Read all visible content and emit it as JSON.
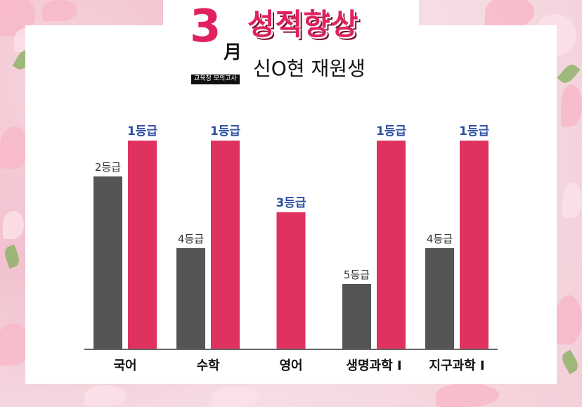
{
  "header": {
    "month_number": "3",
    "month_char": "月",
    "exam_badge": "교육청 모의고사",
    "headline": "성적향상",
    "student": "신O현 재원생"
  },
  "colors": {
    "before": "#555555",
    "after": "#e0325f",
    "after_label": "#2f4fa3",
    "before_label": "#333333",
    "accent": "#e0215d"
  },
  "chart_data": {
    "type": "bar",
    "categories": [
      "국어",
      "수학",
      "영어",
      "생명과학 I",
      "지구과학 I"
    ],
    "series": [
      {
        "values": [
          2,
          4,
          null,
          5,
          4
        ],
        "labels": [
          "2등급",
          "4등급",
          "",
          "5등급",
          "4등급"
        ]
      },
      {
        "values": [
          1,
          1,
          3,
          1,
          1
        ],
        "labels": [
          "1등급",
          "1등급",
          "3등급",
          "1등급",
          "1등급"
        ]
      }
    ],
    "note": "grade scale: lower grade number = better; bar height reflects improvement",
    "grid": false,
    "legend": "none"
  }
}
